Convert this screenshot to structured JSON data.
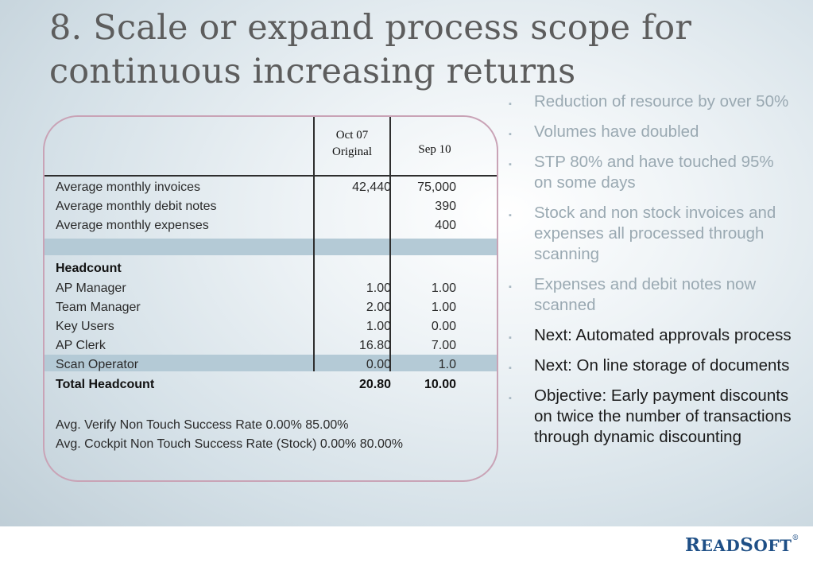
{
  "slide": {
    "title_line1": "8. Scale or expand process scope for",
    "title_line2": "continuous increasing returns"
  },
  "table": {
    "col1_header_line1": "Oct 07",
    "col1_header_line2": "Original",
    "col2_header": "Sep 10",
    "rows": [
      {
        "label": "Average monthly invoices",
        "v1": "42,440",
        "v2": "75,000"
      },
      {
        "label": "Average monthly debit notes",
        "v1": "",
        "v2": "390"
      },
      {
        "label": "Average monthly expenses",
        "v1": "",
        "v2": "400"
      },
      {
        "label": "Headcount",
        "v1": "",
        "v2": ""
      },
      {
        "label": "AP Manager",
        "v1": "1.00",
        "v2": "1.00"
      },
      {
        "label": "Team Manager",
        "v1": "2.00",
        "v2": "1.00"
      },
      {
        "label": "Key Users",
        "v1": "1.00",
        "v2": "0.00"
      },
      {
        "label": "AP Clerk",
        "v1": "16.80",
        "v2": "7.00"
      },
      {
        "label": "Scan Operator",
        "v1": "0.00",
        "v2": "1.0"
      },
      {
        "label": "Total Headcount",
        "v1": "20.80",
        "v2": "10.00"
      }
    ],
    "rate1": "Avg. Verify Non Touch Success Rate          0.00%    85.00%",
    "rate2": "Avg. Cockpit Non Touch Success Rate (Stock) 0.00% 80.00%"
  },
  "bullets": [
    {
      "text": "Reduction of resource by over 50%",
      "style": "muted"
    },
    {
      "text": "Volumes have doubled",
      "style": "muted"
    },
    {
      "text": "STP 80% and have touched 95% on some days",
      "style": "muted"
    },
    {
      "text": "Stock and non stock invoices and expenses all processed through scanning",
      "style": "muted"
    },
    {
      "text": "Expenses and debit notes now scanned",
      "style": "muted"
    },
    {
      "text": "Next: Automated approvals process",
      "style": "dark"
    },
    {
      "text": "Next: On line storage of documents",
      "style": "dark"
    },
    {
      "text": "Objective: Early payment discounts on twice the number of transactions through dynamic discounting",
      "style": "dark"
    }
  ],
  "bullet_marker": "▪",
  "logo": {
    "first_big": "R",
    "first_rest": "EAD",
    "second_big": "S",
    "second_rest": "OFT",
    "mark": "®"
  },
  "colors": {
    "logo": "#1e4f86",
    "band": "#b4cad6",
    "card_border": "#c9a3b6"
  }
}
